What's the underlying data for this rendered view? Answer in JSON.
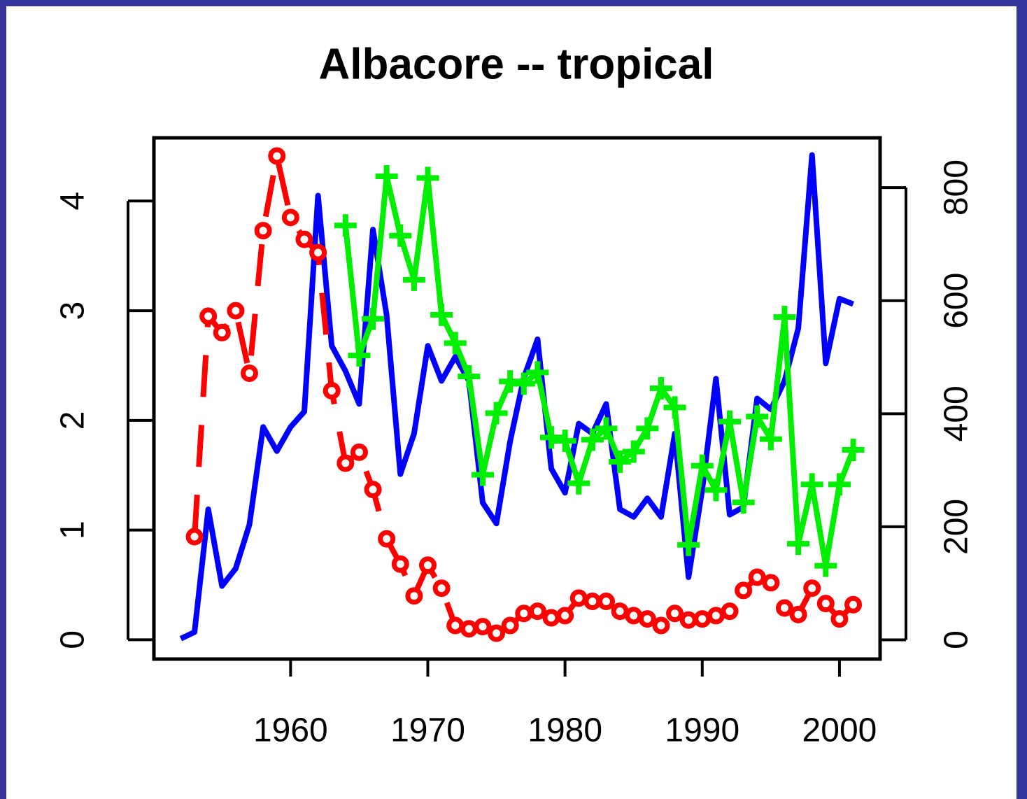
{
  "chart_data": {
    "type": "line",
    "title": "Albacore -- tropical",
    "x": [
      1952,
      1953,
      1954,
      1955,
      1956,
      1957,
      1958,
      1959,
      1960,
      1961,
      1962,
      1963,
      1964,
      1965,
      1966,
      1967,
      1968,
      1969,
      1970,
      1971,
      1972,
      1973,
      1974,
      1975,
      1976,
      1977,
      1978,
      1979,
      1980,
      1981,
      1982,
      1983,
      1984,
      1985,
      1986,
      1987,
      1988,
      1989,
      1990,
      1991,
      1992,
      1993,
      1994,
      1995,
      1996,
      1997,
      1998,
      1999,
      2000,
      2001
    ],
    "xlim": [
      1950.04,
      2002.96
    ],
    "xticks": [
      1960,
      1970,
      1980,
      1990,
      2000
    ],
    "ylim": [
      -0.176,
      4.576
    ],
    "yticks": [
      0,
      1,
      2,
      3,
      4
    ],
    "y2lim": [
      -34,
      888
    ],
    "y2ticks": [
      0,
      200,
      400,
      600,
      800
    ],
    "series": [
      {
        "color": "#0000ff",
        "line_style": "solid",
        "marker": "none",
        "values": [
          0.01,
          0.07,
          1.19,
          0.49,
          0.65,
          1.05,
          1.94,
          1.72,
          1.94,
          2.08,
          4.05,
          2.68,
          2.45,
          2.15,
          3.74,
          2.96,
          1.51,
          1.88,
          2.68,
          2.36,
          2.58,
          2.36,
          1.25,
          1.06,
          1.81,
          2.39,
          2.74,
          1.56,
          1.34,
          1.97,
          1.88,
          2.15,
          1.19,
          1.12,
          1.29,
          1.12,
          1.88,
          0.57,
          1.37,
          2.38,
          1.14,
          1.21,
          2.2,
          2.1,
          2.36,
          2.84,
          4.42,
          2.52,
          3.11,
          3.06
        ]
      },
      {
        "color": "#ff0000",
        "line_style": "dashed",
        "marker": "circle",
        "values": [
          null,
          0.94,
          2.95,
          2.8,
          3.0,
          2.43,
          3.73,
          4.41,
          3.85,
          3.65,
          3.53,
          2.27,
          1.61,
          1.71,
          1.37,
          0.92,
          0.69,
          0.4,
          0.68,
          0.47,
          0.13,
          0.1,
          0.12,
          0.06,
          0.13,
          0.24,
          0.26,
          0.2,
          0.22,
          0.38,
          0.35,
          0.35,
          0.26,
          0.22,
          0.19,
          0.13,
          0.24,
          0.18,
          0.19,
          0.22,
          0.26,
          0.45,
          0.57,
          0.52,
          0.29,
          0.23,
          0.47,
          0.33,
          0.19,
          0.32
        ]
      },
      {
        "color": "#00ee00",
        "line_style": "solid",
        "marker": "plus",
        "axis": "y2",
        "values": [
          null,
          null,
          null,
          null,
          null,
          null,
          null,
          null,
          null,
          null,
          null,
          null,
          733,
          503,
          568,
          820,
          715,
          637,
          817,
          575,
          525,
          466,
          292,
          401,
          457,
          453,
          473,
          358,
          352,
          277,
          354,
          374,
          315,
          333,
          374,
          445,
          411,
          168,
          308,
          265,
          386,
          243,
          395,
          355,
          571,
          170,
          275,
          131,
          275,
          336
        ]
      }
    ]
  }
}
